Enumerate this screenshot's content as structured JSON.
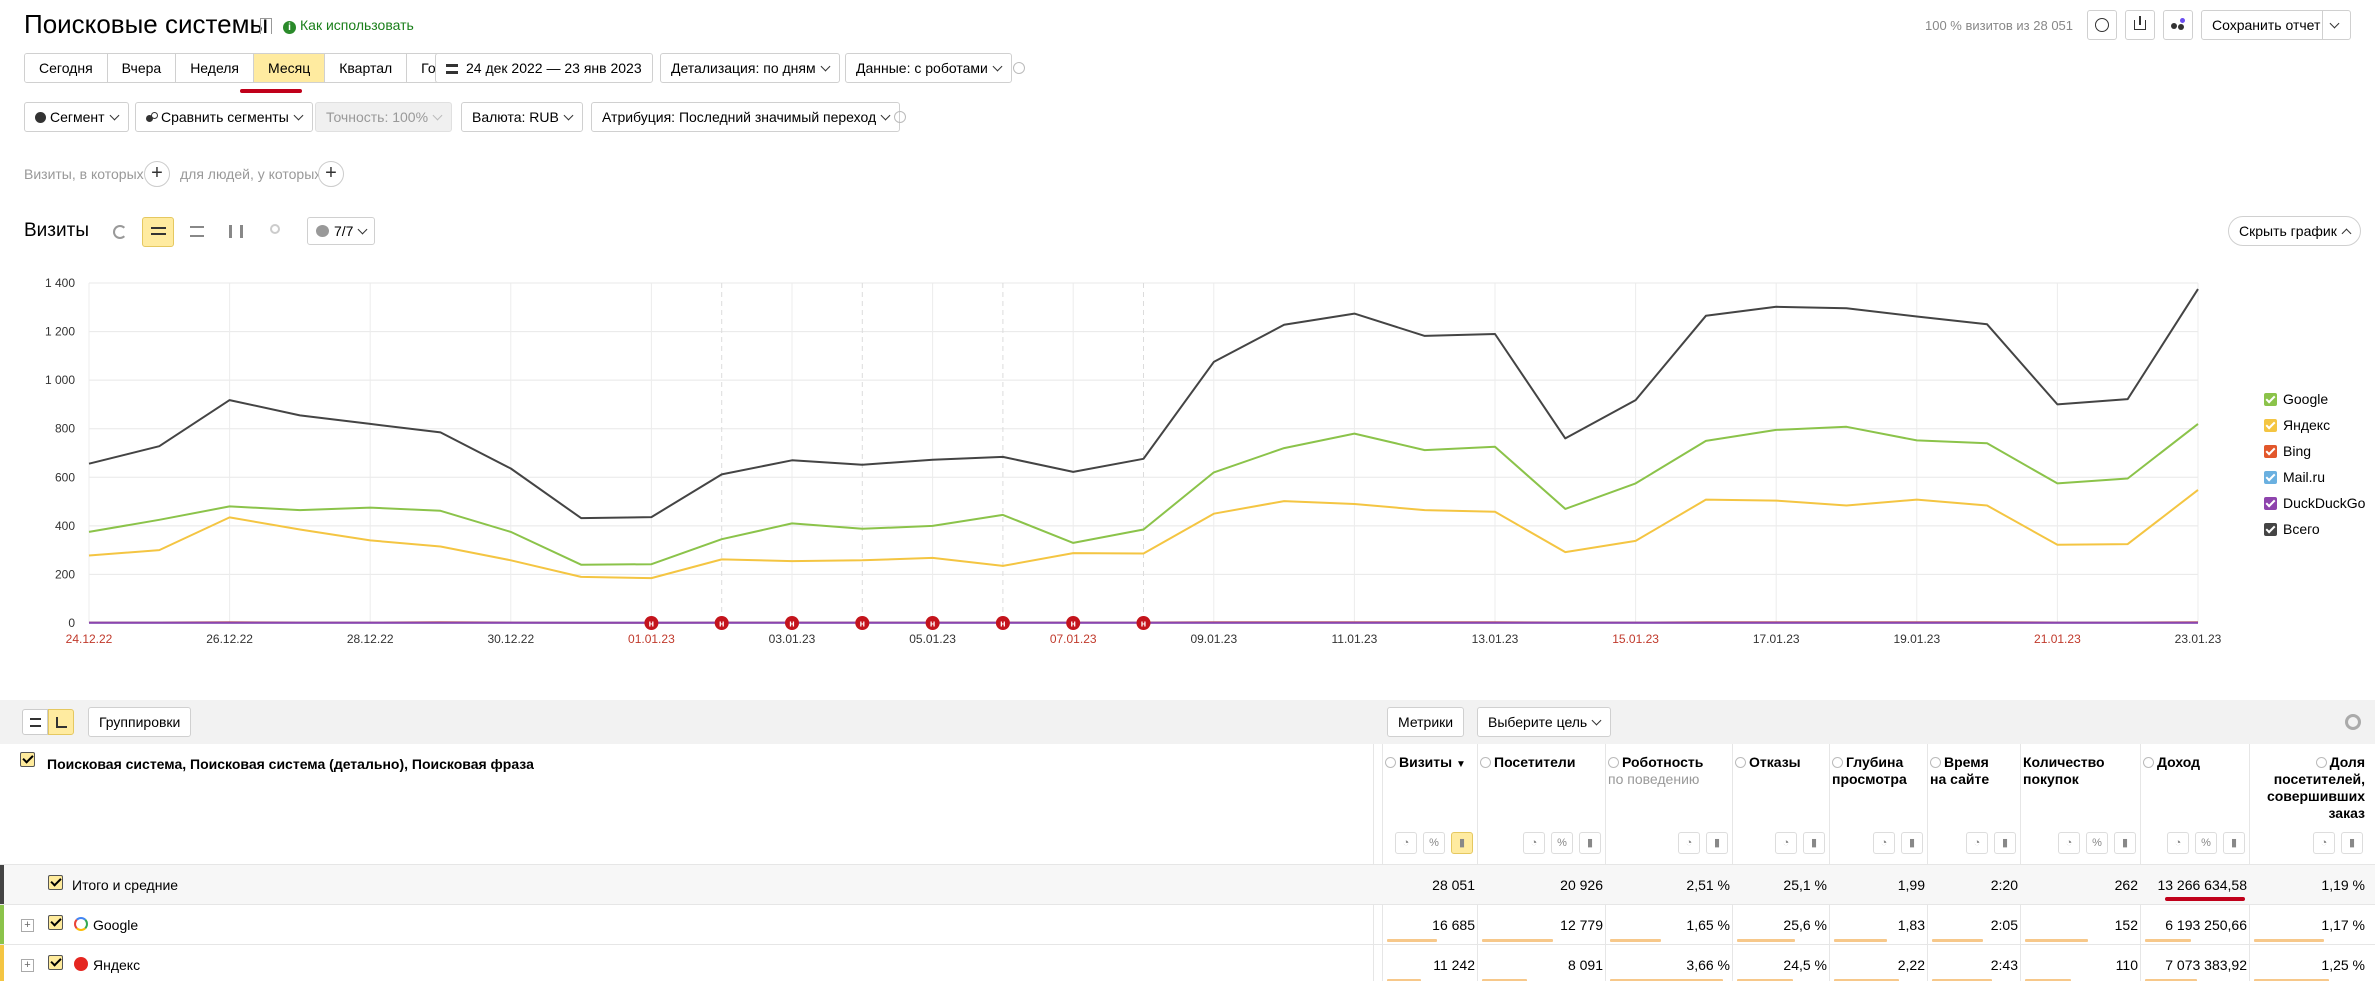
{
  "header": {
    "title": "Поисковые системы",
    "howto": "Как использовать",
    "visits_share": "100 % визитов из 28 051",
    "save_report": "Сохранить отчет"
  },
  "period": {
    "presets": [
      "Сегодня",
      "Вчера",
      "Неделя",
      "Месяц",
      "Квартал",
      "Год"
    ],
    "active": "Месяц",
    "date_range": "24 дек 2022 — 23 янв 2023",
    "detail": "Детализация: по дням",
    "robots": "Данные: с роботами"
  },
  "filters": {
    "segment": "Сегмент",
    "compare": "Сравнить сегменты",
    "accuracy": "Точность: 100%",
    "currency": "Валюта: RUB",
    "attribution": "Атрибуция: Последний значимый переход"
  },
  "conditions": {
    "visits_where": "Визиты, в которых",
    "people_where": "для людей, у которых"
  },
  "chart_header": {
    "title": "Визиты",
    "annotations": "7/7",
    "hide_chart": "Скрыть график"
  },
  "chart_data": {
    "type": "line",
    "x": [
      "24.12.22",
      "25.12.22",
      "26.12.22",
      "27.12.22",
      "28.12.22",
      "29.12.22",
      "30.12.22",
      "31.12.22",
      "01.01.23",
      "02.01.23",
      "03.01.23",
      "04.01.23",
      "05.01.23",
      "06.01.23",
      "07.01.23",
      "08.01.23",
      "09.01.23",
      "10.01.23",
      "11.01.23",
      "12.01.23",
      "13.01.23",
      "14.01.23",
      "15.01.23",
      "16.01.23",
      "17.01.23",
      "18.01.23",
      "19.01.23",
      "20.01.23",
      "21.01.23",
      "22.01.23",
      "23.01.23"
    ],
    "x_tick_labels": [
      "24.12.22",
      "26.12.22",
      "28.12.22",
      "30.12.22",
      "01.01.23",
      "03.01.23",
      "05.01.23",
      "07.01.23",
      "09.01.23",
      "11.01.23",
      "13.01.23",
      "15.01.23",
      "17.01.23",
      "19.01.23",
      "21.01.23",
      "23.01.23"
    ],
    "red_tick_labels": [
      "24.12.22",
      "01.01.23",
      "07.01.23",
      "15.01.23",
      "21.01.23"
    ],
    "y_ticks": [
      "0",
      "200",
      "400",
      "600",
      "800",
      "1 000",
      "1 200",
      "1 400"
    ],
    "ylim": [
      0,
      1400
    ],
    "holiday_markers": [
      "01.01.23",
      "02.01.23",
      "03.01.23",
      "04.01.23",
      "05.01.23",
      "06.01.23",
      "07.01.23",
      "08.01.23"
    ],
    "holiday_marker_label": "н",
    "legend_position": "right",
    "series": [
      {
        "name": "Google",
        "color": "#8bc34a",
        "values": [
          375,
          425,
          480,
          465,
          475,
          462,
          375,
          240,
          242,
          345,
          410,
          388,
          400,
          445,
          330,
          385,
          620,
          720,
          780,
          712,
          726,
          470,
          575,
          750,
          795,
          808,
          752,
          740,
          575,
          595,
          820
        ]
      },
      {
        "name": "Яндекс",
        "color": "#f4c542",
        "values": [
          278,
          300,
          435,
          385,
          340,
          315,
          258,
          190,
          185,
          262,
          255,
          258,
          268,
          235,
          288,
          286,
          450,
          502,
          490,
          465,
          458,
          292,
          338,
          508,
          504,
          484,
          508,
          484,
          322,
          325,
          548
        ]
      },
      {
        "name": "Bing",
        "color": "#e2572b",
        "values": [
          2,
          2,
          3,
          2,
          2,
          3,
          2,
          1,
          1,
          2,
          2,
          2,
          2,
          2,
          2,
          2,
          3,
          3,
          3,
          3,
          3,
          2,
          2,
          3,
          3,
          3,
          3,
          3,
          2,
          2,
          3
        ]
      },
      {
        "name": "Mail.ru",
        "color": "#6ab0e0",
        "values": [
          1,
          1,
          1,
          1,
          1,
          1,
          1,
          1,
          1,
          1,
          1,
          1,
          1,
          1,
          1,
          1,
          1,
          1,
          1,
          1,
          1,
          1,
          1,
          1,
          1,
          1,
          1,
          1,
          1,
          1,
          1
        ]
      },
      {
        "name": "DuckDuckGo",
        "color": "#8e44ad",
        "values": [
          1,
          1,
          1,
          1,
          1,
          1,
          1,
          1,
          1,
          1,
          1,
          1,
          1,
          1,
          1,
          1,
          1,
          1,
          1,
          1,
          1,
          1,
          1,
          1,
          1,
          1,
          1,
          1,
          1,
          1,
          1
        ]
      },
      {
        "name": "Всего",
        "color": "#444444",
        "values": [
          656,
          728,
          918,
          855,
          820,
          785,
          636,
          432,
          436,
          612,
          670,
          652,
          672,
          684,
          622,
          676,
          1075,
          1228,
          1274,
          1182,
          1190,
          760,
          918,
          1265,
          1302,
          1296,
          1262,
          1230,
          900,
          922,
          1375
        ]
      }
    ]
  },
  "table_toolbar": {
    "groupings": "Группировки",
    "metrics": "Метрики",
    "goal": "Выберите цель"
  },
  "table": {
    "dimension_header": "Поисковая система, Поисковая система (детально), Поисковая фраза",
    "columns": [
      {
        "l1": "Визиты",
        "l2": "",
        "l3": "",
        "sort": "▼"
      },
      {
        "l1": "Посетители",
        "l2": "",
        "l3": ""
      },
      {
        "l1": "Роботность",
        "l2": "по поведению",
        "l3": ""
      },
      {
        "l1": "Отказы",
        "l2": "",
        "l3": ""
      },
      {
        "l1": "Глубина",
        "l2": "просмотра",
        "l3": ""
      },
      {
        "l1": "Время",
        "l2": "на сайте",
        "l3": ""
      },
      {
        "l1": "Количество",
        "l2": "покупок",
        "l3": ""
      },
      {
        "l1": "Доход",
        "l2": "",
        "l3": ""
      },
      {
        "l1": "Доля",
        "l2": "посетителей,",
        "l3": "совершивших",
        "l4": "заказ"
      }
    ],
    "totals": {
      "name": "Итого и средние",
      "values": [
        "28 051",
        "20 926",
        "2,51 %",
        "25,1 %",
        "1,99",
        "2:20",
        "262",
        "13 266 634,58",
        "1,19 %"
      ]
    },
    "rows": [
      {
        "name": "Google",
        "values": [
          "16 685",
          "12 779",
          "1,65 %",
          "25,6 %",
          "1,83",
          "2:05",
          "152",
          "6 193 250,66",
          "1,17 %"
        ]
      },
      {
        "name": "Яндекс",
        "values": [
          "11 242",
          "8 091",
          "3,66 %",
          "24,5 %",
          "2,22",
          "2:43",
          "110",
          "7 073 383,92",
          "1,25 %"
        ]
      }
    ]
  }
}
